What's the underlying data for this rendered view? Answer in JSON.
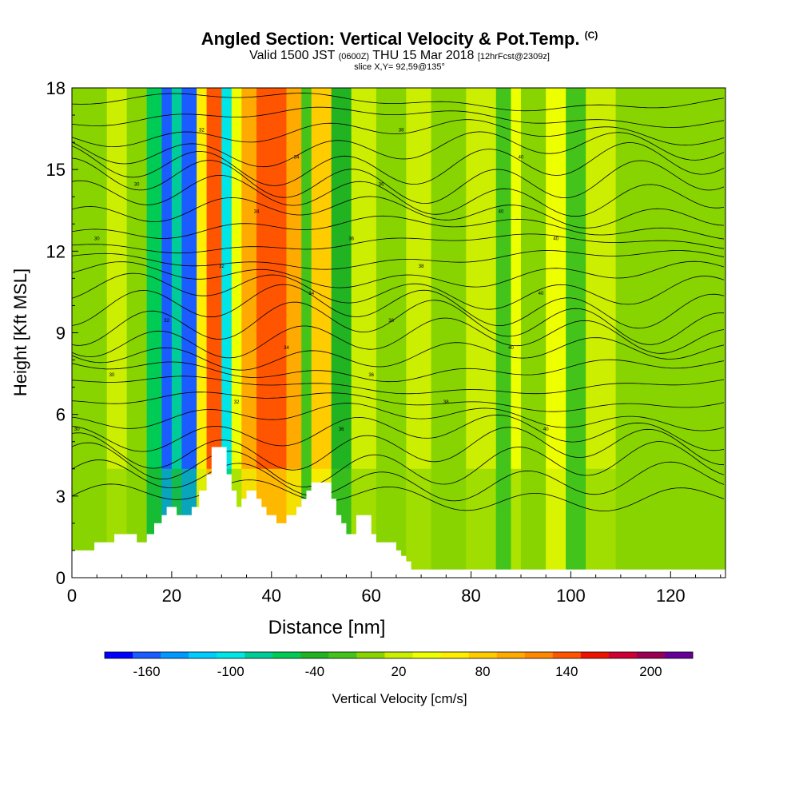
{
  "header": {
    "title": "Angled Section: Vertical Velocity & Pot.Temp.",
    "copyright": "(C)",
    "valid_prefix": "Valid 1500 JST",
    "valid_utc": "(0600Z)",
    "valid_date": "THU 15 Mar 2018",
    "forecast": "[12hrFcst@2309z]",
    "slice": "slice X,Y= 92,59@135°"
  },
  "chart_data": {
    "type": "heatmap",
    "title": "Angled Section: Vertical Velocity & Pot.Temp.",
    "xlabel": "Distance [nm]",
    "ylabel": "Height [Kft MSL]",
    "xlim": [
      0,
      131
    ],
    "ylim": [
      0,
      18
    ],
    "xticks": [
      "0",
      "20",
      "40",
      "60",
      "80",
      "100",
      "120"
    ],
    "yticks": [
      "0",
      "3",
      "6",
      "9",
      "12",
      "15",
      "18"
    ],
    "colorbar": {
      "label": "Vertical Velocity [cm/s]",
      "tick_labels": [
        "-160",
        "-100",
        "-40",
        "20",
        "80",
        "140",
        "200"
      ],
      "bins": [
        -180,
        -160,
        -140,
        -120,
        -100,
        -80,
        -60,
        -40,
        -20,
        0,
        20,
        40,
        60,
        80,
        100,
        120,
        140,
        160,
        180,
        200,
        220,
        240
      ],
      "colors": [
        "#0000ff",
        "#1a5cff",
        "#0099ff",
        "#00ccff",
        "#00e6e6",
        "#00cc99",
        "#00cc55",
        "#22b322",
        "#44c41a",
        "#88d400",
        "#ccee00",
        "#eeff00",
        "#ffee00",
        "#ffcc00",
        "#ffaa00",
        "#ff8800",
        "#ff5500",
        "#ee1100",
        "#cc0033",
        "#990055",
        "#660099"
      ]
    },
    "vertical_velocity_columns": [
      {
        "x": 0,
        "w": 7,
        "v": 0
      },
      {
        "x": 7,
        "w": 4,
        "v": 20
      },
      {
        "x": 11,
        "w": 4,
        "v": 10
      },
      {
        "x": 15,
        "w": 3,
        "v": -60
      },
      {
        "x": 18,
        "w": 2,
        "v": -150
      },
      {
        "x": 20,
        "w": 2,
        "v": -70
      },
      {
        "x": 22,
        "w": 3,
        "v": -160
      },
      {
        "x": 25,
        "w": 2,
        "v": 60
      },
      {
        "x": 27,
        "w": 3,
        "v": 150
      },
      {
        "x": 30,
        "w": 2,
        "v": -90
      },
      {
        "x": 32,
        "w": 2,
        "v": 40
      },
      {
        "x": 34,
        "w": 3,
        "v": 110
      },
      {
        "x": 37,
        "w": 6,
        "v": 140
      },
      {
        "x": 43,
        "w": 3,
        "v": 100
      },
      {
        "x": 46,
        "w": 2,
        "v": -20
      },
      {
        "x": 48,
        "w": 4,
        "v": 90
      },
      {
        "x": 52,
        "w": 4,
        "v": -30
      },
      {
        "x": 56,
        "w": 5,
        "v": 20
      },
      {
        "x": 61,
        "w": 6,
        "v": 0
      },
      {
        "x": 67,
        "w": 5,
        "v": 30
      },
      {
        "x": 72,
        "w": 7,
        "v": 0
      },
      {
        "x": 79,
        "w": 6,
        "v": 30
      },
      {
        "x": 85,
        "w": 3,
        "v": -20
      },
      {
        "x": 88,
        "w": 2,
        "v": 40
      },
      {
        "x": 90,
        "w": 5,
        "v": 10
      },
      {
        "x": 95,
        "w": 4,
        "v": 50
      },
      {
        "x": 99,
        "w": 4,
        "v": -20
      },
      {
        "x": 103,
        "w": 6,
        "v": 20
      },
      {
        "x": 109,
        "w": 8,
        "v": 0
      },
      {
        "x": 117,
        "w": 14,
        "v": 10
      }
    ],
    "terrain": [
      [
        0,
        1
      ],
      [
        4.5,
        1
      ],
      [
        4.5,
        1.3
      ],
      [
        8.5,
        1.3
      ],
      [
        8.5,
        1.6
      ],
      [
        13,
        1.6
      ],
      [
        13,
        1.3
      ],
      [
        15,
        1.3
      ],
      [
        15,
        1.6
      ],
      [
        16.5,
        1.6
      ],
      [
        16.5,
        2
      ],
      [
        18,
        2
      ],
      [
        18,
        2.3
      ],
      [
        19,
        2.3
      ],
      [
        19,
        2.6
      ],
      [
        21,
        2.6
      ],
      [
        21,
        2.3
      ],
      [
        24,
        2.3
      ],
      [
        24,
        2.6
      ],
      [
        25.5,
        2.6
      ],
      [
        25.5,
        3.2
      ],
      [
        27,
        3.2
      ],
      [
        27,
        3.8
      ],
      [
        28,
        3.8
      ],
      [
        28,
        4.8
      ],
      [
        31,
        4.8
      ],
      [
        31,
        3.8
      ],
      [
        32,
        3.8
      ],
      [
        32,
        3.2
      ],
      [
        33,
        3.2
      ],
      [
        33,
        2.6
      ],
      [
        34,
        2.6
      ],
      [
        34,
        2.9
      ],
      [
        35,
        2.9
      ],
      [
        35,
        3.2
      ],
      [
        37,
        3.2
      ],
      [
        37,
        2.9
      ],
      [
        38,
        2.9
      ],
      [
        38,
        2.6
      ],
      [
        39,
        2.6
      ],
      [
        39,
        2.3
      ],
      [
        41,
        2.3
      ],
      [
        41,
        2
      ],
      [
        43,
        2
      ],
      [
        43,
        2.3
      ],
      [
        45,
        2.3
      ],
      [
        45,
        2.6
      ],
      [
        46,
        2.6
      ],
      [
        46,
        2.9
      ],
      [
        47,
        2.9
      ],
      [
        47,
        3.2
      ],
      [
        48,
        3.2
      ],
      [
        48,
        3.5
      ],
      [
        52,
        3.5
      ],
      [
        52,
        2.9
      ],
      [
        53,
        2.9
      ],
      [
        53,
        2.3
      ],
      [
        54,
        2.3
      ],
      [
        54,
        2
      ],
      [
        55,
        2
      ],
      [
        55,
        1.6
      ],
      [
        57,
        1.6
      ],
      [
        57,
        2.3
      ],
      [
        60,
        2.3
      ],
      [
        60,
        1.6
      ],
      [
        61,
        1.6
      ],
      [
        61,
        1.3
      ],
      [
        65,
        1.3
      ],
      [
        65,
        1
      ],
      [
        66,
        1
      ],
      [
        66,
        0.8
      ],
      [
        67,
        0.8
      ],
      [
        67,
        0.6
      ],
      [
        68,
        0.6
      ],
      [
        68,
        0.3
      ],
      [
        131,
        0.3
      ],
      [
        131,
        0
      ]
    ],
    "isentrope_labels": [
      "30",
      "30",
      "30",
      "30",
      "32",
      "32",
      "32",
      "32",
      "34",
      "34",
      "34",
      "34",
      "36",
      "36",
      "36",
      "36",
      "38",
      "38",
      "38",
      "38",
      "40",
      "40",
      "40",
      "40",
      "40",
      "40"
    ]
  }
}
